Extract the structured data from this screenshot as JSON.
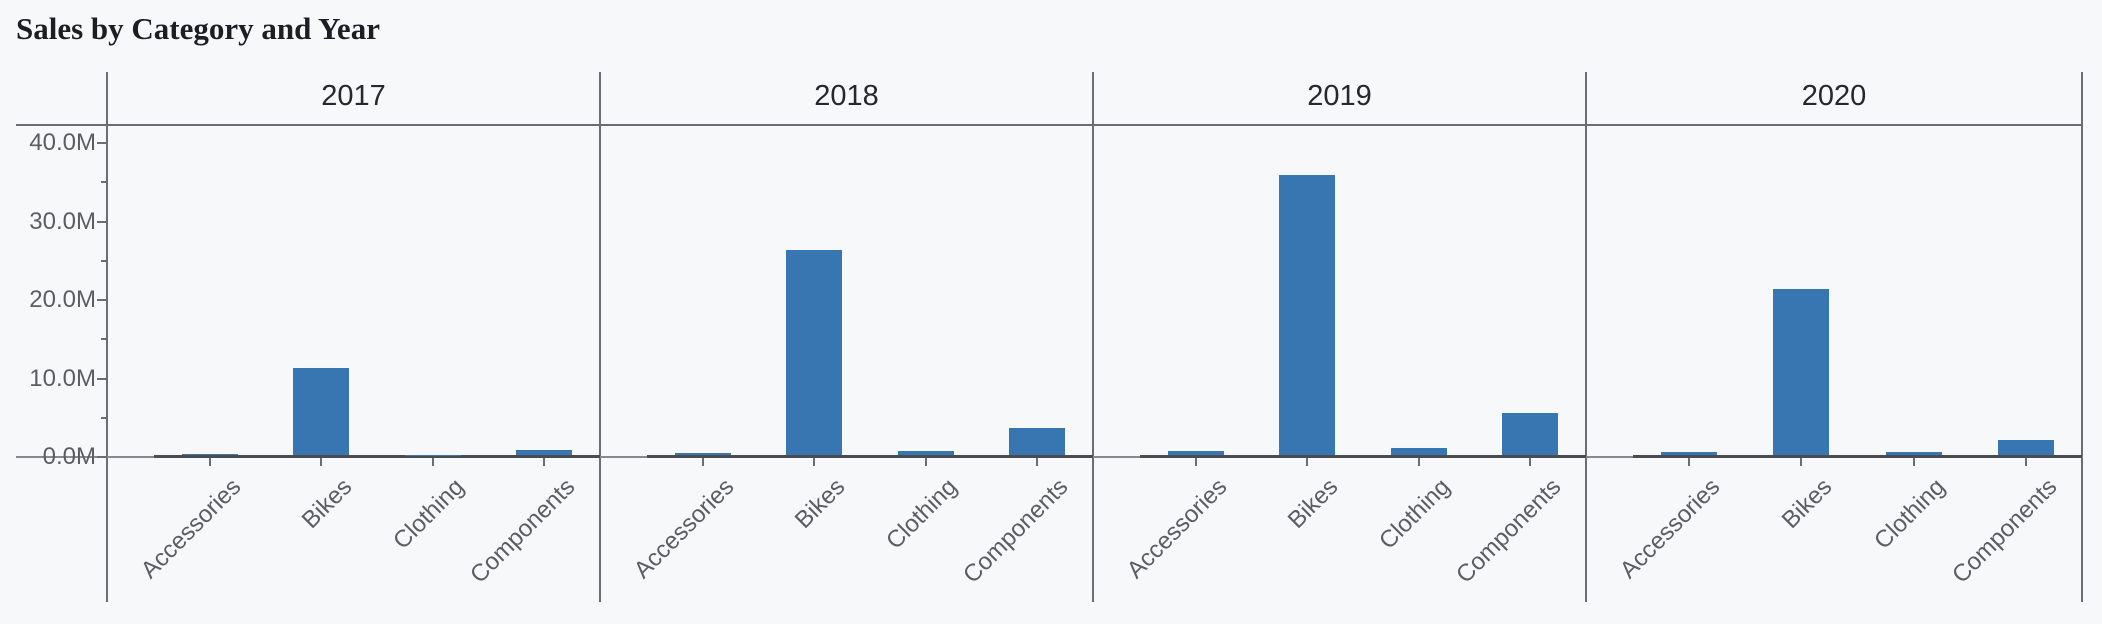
{
  "title": "Sales by Category and Year",
  "chart_data": {
    "type": "bar",
    "title": "Sales by Category and Year",
    "facet_field": "year",
    "facets": [
      "2017",
      "2018",
      "2019",
      "2020"
    ],
    "categories": [
      "Accessories",
      "Bikes",
      "Clothing",
      "Components"
    ],
    "series": [
      {
        "name": "2017",
        "values": [
          0.1,
          11.1,
          0.04,
          0.65
        ]
      },
      {
        "name": "2018",
        "values": [
          0.26,
          26.1,
          0.45,
          3.45
        ]
      },
      {
        "name": "2019",
        "values": [
          0.55,
          35.7,
          0.9,
          5.35
        ]
      },
      {
        "name": "2020",
        "values": [
          0.4,
          21.2,
          0.42,
          1.9
        ]
      }
    ],
    "value_unit": "M",
    "ylim": [
      0,
      40
    ],
    "y_major_ticks": [
      {
        "value": 0,
        "label": "0.0M"
      },
      {
        "value": 10,
        "label": "10.0M"
      },
      {
        "value": 20,
        "label": "20.0M"
      },
      {
        "value": 30,
        "label": "30.0M"
      },
      {
        "value": 40,
        "label": "40.0M"
      }
    ],
    "y_minor_ticks": [
      5,
      15,
      25,
      35
    ],
    "xlabel": "",
    "ylabel": "",
    "grid": false,
    "legend": false,
    "bar_color": "#3776b1",
    "colors": {
      "background": "#f7f8fa",
      "frame_line": "#6b6e71",
      "baseline_light": "#87898c",
      "baseline_dark": "#4a4c4f",
      "axis_label": "#5a5e63",
      "facet_header": "#25282c",
      "title": "#1b1e24"
    }
  }
}
